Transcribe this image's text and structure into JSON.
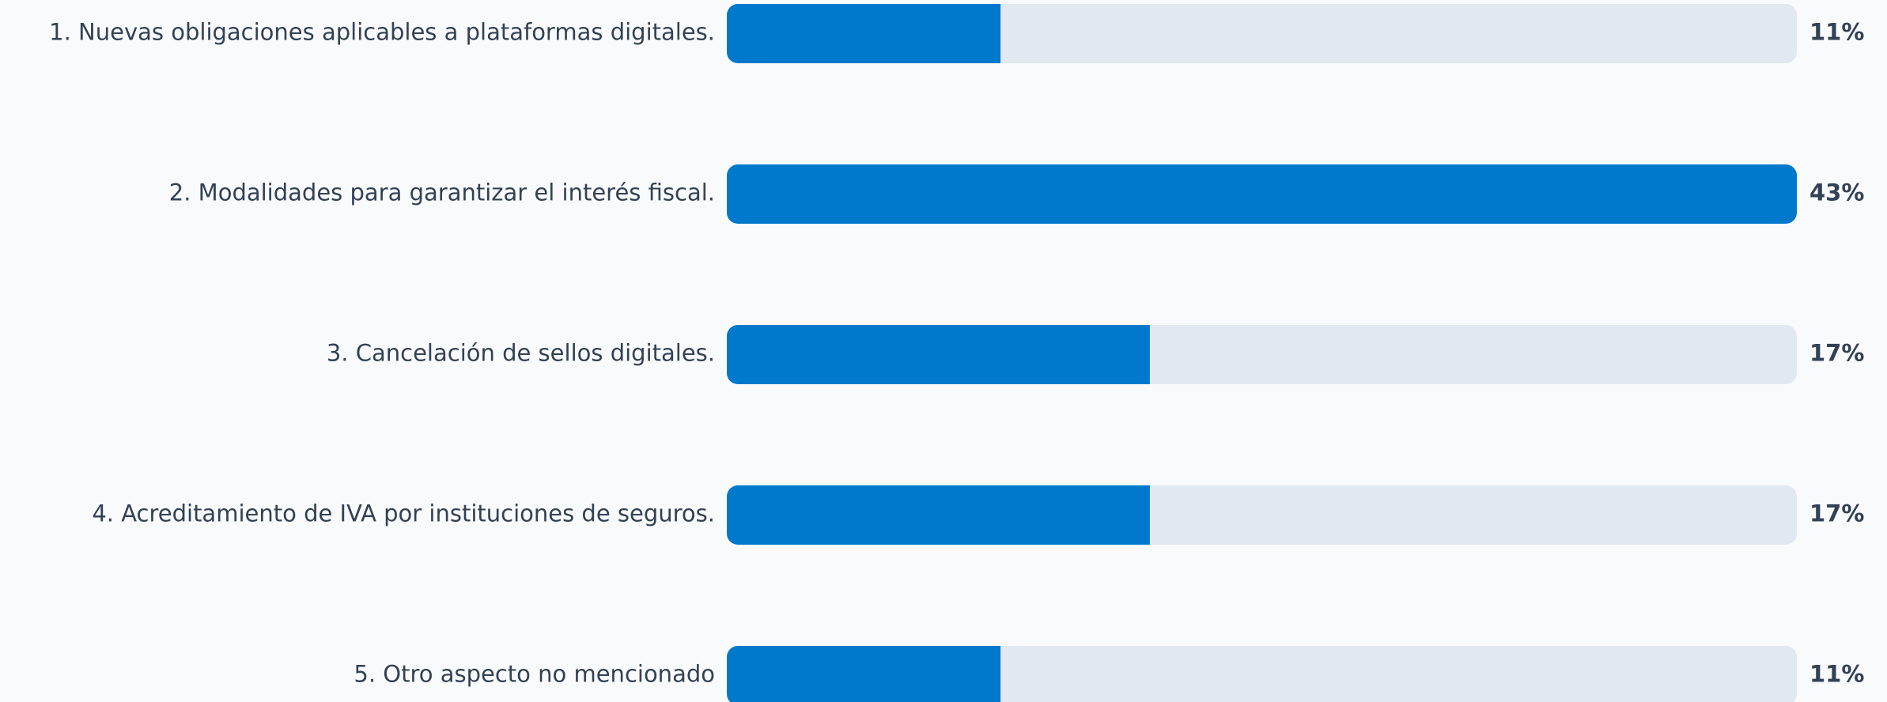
{
  "chart_data": {
    "type": "bar",
    "categories": [
      "1. Nuevas obligaciones aplicables a plataformas digitales.",
      "2. Modalidades para garantizar el interés fiscal.",
      "3. Cancelación de sellos digitales.",
      "4. Acreditamiento de IVA por instituciones de seguros.",
      "5. Otro aspecto no mencionado"
    ],
    "values": [
      11,
      43,
      17,
      17,
      11
    ],
    "value_labels": [
      "11%",
      "43%",
      "17%",
      "17%",
      "11%"
    ],
    "color": "#0079cc"
  }
}
